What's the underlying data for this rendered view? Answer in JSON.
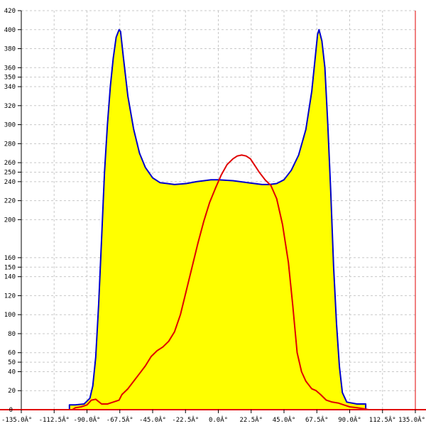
{
  "chart_data": {
    "type": "area",
    "title": "",
    "xlabel": "",
    "ylabel": "",
    "xlim": [
      -135,
      135
    ],
    "ylim": [
      0,
      420
    ],
    "x_ticks": [
      -135,
      -112.5,
      -90,
      -67.5,
      -45,
      -22.5,
      0,
      22.5,
      45,
      67.5,
      90,
      112.5,
      135
    ],
    "x_tick_labels": [
      "-135.0Â°",
      "-112.5Â°",
      "-90.0Â°",
      "-67.5Â°",
      "-45.0Â°",
      "-22.5Â°",
      "0.0Â°",
      "22.5Â°",
      "45.0Â°",
      "67.5Â°",
      "90.0Â°",
      "112.5Â°",
      "135.0Â°"
    ],
    "y_ticks": [
      20,
      40,
      50,
      60,
      80,
      100,
      120,
      140,
      150,
      160,
      200,
      220,
      240,
      250,
      260,
      280,
      300,
      320,
      340,
      350,
      360,
      380,
      400,
      420
    ],
    "grid": true,
    "series": [
      {
        "color": "#0000cc",
        "fill": "#ffff00",
        "points": [
          [
            -102,
            0
          ],
          [
            -102,
            5
          ],
          [
            -98,
            5
          ],
          [
            -92,
            6
          ],
          [
            -88,
            12
          ],
          [
            -86,
            25
          ],
          [
            -84,
            55
          ],
          [
            -82,
            110
          ],
          [
            -80,
            180
          ],
          [
            -78,
            250
          ],
          [
            -76,
            300
          ],
          [
            -74,
            340
          ],
          [
            -72,
            370
          ],
          [
            -70,
            392
          ],
          [
            -68,
            400
          ],
          [
            -67,
            398
          ],
          [
            -65,
            370
          ],
          [
            -62,
            330
          ],
          [
            -58,
            295
          ],
          [
            -54,
            270
          ],
          [
            -50,
            255
          ],
          [
            -45,
            244
          ],
          [
            -40,
            239
          ],
          [
            -35,
            238
          ],
          [
            -30,
            237
          ],
          [
            -22,
            238
          ],
          [
            -15,
            240
          ],
          [
            -5,
            242
          ],
          [
            0,
            242
          ],
          [
            10,
            241
          ],
          [
            20,
            239
          ],
          [
            30,
            237
          ],
          [
            35,
            237
          ],
          [
            40,
            238
          ],
          [
            45,
            242
          ],
          [
            50,
            252
          ],
          [
            55,
            268
          ],
          [
            60,
            295
          ],
          [
            64,
            335
          ],
          [
            66,
            365
          ],
          [
            68,
            395
          ],
          [
            69,
            400
          ],
          [
            71,
            388
          ],
          [
            73,
            360
          ],
          [
            75,
            300
          ],
          [
            77,
            230
          ],
          [
            79,
            150
          ],
          [
            81,
            90
          ],
          [
            83,
            45
          ],
          [
            85,
            18
          ],
          [
            88,
            8
          ],
          [
            95,
            6
          ],
          [
            100,
            6
          ],
          [
            101,
            6
          ],
          [
            101,
            0
          ]
        ]
      },
      {
        "color": "#e00000",
        "points": [
          [
            -100,
            0
          ],
          [
            -98,
            2
          ],
          [
            -94,
            3
          ],
          [
            -90,
            5
          ],
          [
            -87,
            10
          ],
          [
            -84,
            11
          ],
          [
            -80,
            6
          ],
          [
            -76,
            6
          ],
          [
            -72,
            8
          ],
          [
            -68,
            10
          ],
          [
            -66,
            16
          ],
          [
            -62,
            22
          ],
          [
            -58,
            30
          ],
          [
            -54,
            38
          ],
          [
            -50,
            46
          ],
          [
            -46,
            56
          ],
          [
            -42,
            62
          ],
          [
            -38,
            66
          ],
          [
            -34,
            72
          ],
          [
            -30,
            82
          ],
          [
            -26,
            100
          ],
          [
            -22,
            125
          ],
          [
            -18,
            150
          ],
          [
            -14,
            175
          ],
          [
            -10,
            198
          ],
          [
            -6,
            218
          ],
          [
            -2,
            233
          ],
          [
            2,
            247
          ],
          [
            6,
            258
          ],
          [
            10,
            264
          ],
          [
            13,
            267
          ],
          [
            16,
            268
          ],
          [
            19,
            267
          ],
          [
            22,
            264
          ],
          [
            25,
            257
          ],
          [
            28,
            250
          ],
          [
            32,
            242
          ],
          [
            36,
            236
          ],
          [
            40,
            222
          ],
          [
            44,
            195
          ],
          [
            48,
            155
          ],
          [
            51,
            110
          ],
          [
            54,
            60
          ],
          [
            57,
            40
          ],
          [
            60,
            30
          ],
          [
            64,
            22
          ],
          [
            67,
            20
          ],
          [
            70,
            16
          ],
          [
            74,
            10
          ],
          [
            78,
            8
          ],
          [
            82,
            7
          ],
          [
            86,
            5
          ],
          [
            90,
            3
          ],
          [
            95,
            2
          ],
          [
            100,
            1
          ],
          [
            103,
            0
          ]
        ]
      }
    ]
  }
}
